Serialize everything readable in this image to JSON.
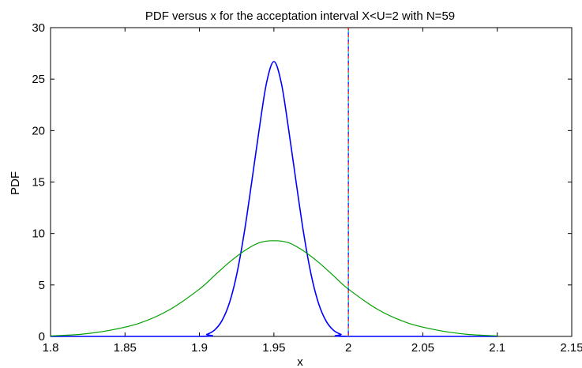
{
  "chart_data": {
    "type": "line",
    "title": "PDF versus x for the acceptation interval X<U=2 with N=59",
    "xlabel": "x",
    "ylabel": "PDF",
    "xlim": [
      1.8,
      2.15
    ],
    "ylim": [
      0,
      30
    ],
    "xticks": [
      "1.8",
      "1.85",
      "1.9",
      "1.95",
      "2",
      "2.05",
      "2.1",
      "2.15"
    ],
    "yticks": [
      "0",
      "5",
      "10",
      "15",
      "20",
      "25",
      "30"
    ],
    "grid": false,
    "legend": "none",
    "series": [
      {
        "color": "#0000ff",
        "x": [
          1.8,
          1.9,
          1.905,
          1.91,
          1.915,
          1.92,
          1.925,
          1.93,
          1.935,
          1.94,
          1.945,
          1.95,
          1.955,
          1.96,
          1.965,
          1.97,
          1.975,
          1.98,
          1.985,
          1.99,
          1.995,
          2.0,
          2.1
        ],
        "y": [
          0,
          0,
          0.2,
          0.6,
          1.5,
          3.2,
          6.0,
          10.0,
          14.9,
          20.0,
          24.6,
          26.7,
          24.6,
          20.0,
          14.9,
          10.0,
          6.0,
          3.2,
          1.5,
          0.6,
          0.2,
          0,
          0
        ]
      },
      {
        "color": "#00a000",
        "x": [
          1.8,
          1.82,
          1.84,
          1.86,
          1.88,
          1.9,
          1.91,
          1.92,
          1.93,
          1.94,
          1.95,
          1.96,
          1.97,
          1.98,
          1.99,
          2.0,
          2.02,
          2.04,
          2.06,
          2.08,
          2.1
        ],
        "y": [
          0.05,
          0.2,
          0.6,
          1.3,
          2.6,
          4.6,
          5.9,
          7.2,
          8.3,
          9.1,
          9.3,
          9.1,
          8.3,
          7.2,
          5.9,
          4.6,
          2.6,
          1.3,
          0.6,
          0.2,
          0.05
        ]
      }
    ],
    "vlines": [
      {
        "x": 2.0,
        "colors": [
          "#ff0000",
          "#00c0c0",
          "#0000ff"
        ]
      }
    ]
  }
}
